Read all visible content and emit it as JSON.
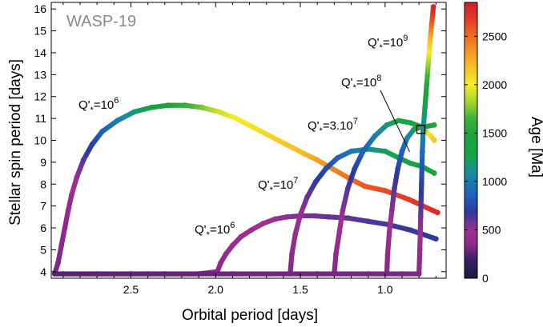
{
  "chart_data": {
    "type": "scatter",
    "title": "WASP-19",
    "xlabel": "Orbital period [days]",
    "ylabel": "Stellar spin period [days]",
    "colorbar_label": "Age [Ma]",
    "xlim": [
      2.97,
      0.64
    ],
    "ylim": [
      3.7,
      16.3
    ],
    "x_reversed": true,
    "clim": [
      0,
      2850
    ],
    "colormap": "spectral (purple → blue → green → yellow → orange → red)",
    "grid": false,
    "x_ticks": [
      2.5,
      2.0,
      1.5,
      1.0
    ],
    "x_tick_labels": [
      "2.5",
      "2.0",
      "1.5",
      "1.0"
    ],
    "y_ticks": [
      4,
      5,
      6,
      7,
      8,
      9,
      10,
      11,
      12,
      13,
      14,
      15,
      16
    ],
    "y_tick_labels": [
      "4",
      "5",
      "6",
      "7",
      "8",
      "9",
      "10",
      "11",
      "12",
      "13",
      "14",
      "15",
      "16"
    ],
    "colorbar_ticks": [
      0,
      500,
      1000,
      1500,
      2000,
      2500
    ],
    "colorbar_tick_labels": [
      "0",
      "500",
      "1000",
      "1500",
      "2000",
      "2500"
    ],
    "observed_point": {
      "x": 0.789,
      "y": 10.5
    },
    "series": [
      {
        "name": "Q'*=10^6",
        "label_main": "Q'",
        "label_sub": "*",
        "label_eq": "=10",
        "label_sup": "6",
        "points": [
          {
            "x": 2.95,
            "y": 3.9,
            "age": 300
          },
          {
            "x": 2.93,
            "y": 4.4,
            "age": 320
          },
          {
            "x": 2.91,
            "y": 5.2,
            "age": 340
          },
          {
            "x": 2.89,
            "y": 6.0,
            "age": 360
          },
          {
            "x": 2.87,
            "y": 6.8,
            "age": 390
          },
          {
            "x": 2.85,
            "y": 7.5,
            "age": 430
          },
          {
            "x": 2.82,
            "y": 8.3,
            "age": 500
          },
          {
            "x": 2.78,
            "y": 9.1,
            "age": 600
          },
          {
            "x": 2.73,
            "y": 9.8,
            "age": 720
          },
          {
            "x": 2.67,
            "y": 10.4,
            "age": 850
          },
          {
            "x": 2.58,
            "y": 10.9,
            "age": 1000
          },
          {
            "x": 2.48,
            "y": 11.3,
            "age": 1150
          },
          {
            "x": 2.38,
            "y": 11.5,
            "age": 1300
          },
          {
            "x": 2.28,
            "y": 11.6,
            "age": 1450
          },
          {
            "x": 2.18,
            "y": 11.6,
            "age": 1600
          },
          {
            "x": 2.08,
            "y": 11.5,
            "age": 1750
          },
          {
            "x": 1.98,
            "y": 11.3,
            "age": 1900
          },
          {
            "x": 1.88,
            "y": 11.0,
            "age": 2000
          },
          {
            "x": 1.78,
            "y": 10.6,
            "age": 2050
          },
          {
            "x": 1.68,
            "y": 10.2,
            "age": 2100
          },
          {
            "x": 1.58,
            "y": 9.8,
            "age": 2150
          },
          {
            "x": 1.48,
            "y": 9.4,
            "age": 2200
          },
          {
            "x": 1.4,
            "y": 9.1,
            "age": 2300
          },
          {
            "x": 1.31,
            "y": 8.7,
            "age": 2400
          },
          {
            "x": 1.22,
            "y": 8.3,
            "age": 2480
          },
          {
            "x": 1.12,
            "y": 7.9,
            "age": 2560
          },
          {
            "x": 1.0,
            "y": 7.7,
            "age": 2620
          },
          {
            "x": 0.86,
            "y": 7.3,
            "age": 2680
          },
          {
            "x": 0.72,
            "y": 6.8,
            "age": 2740
          },
          {
            "x": 0.69,
            "y": 6.7,
            "age": 2780
          }
        ]
      },
      {
        "name": "Q'*=10^6 (lower)",
        "label_main": "Q'",
        "label_sub": "*",
        "label_eq": "=10",
        "label_sup": "6",
        "points": [
          {
            "x": 2.9,
            "y": 3.9,
            "age": 250
          },
          {
            "x": 2.7,
            "y": 3.9,
            "age": 270
          },
          {
            "x": 2.5,
            "y": 3.9,
            "age": 290
          },
          {
            "x": 2.3,
            "y": 3.9,
            "age": 310
          },
          {
            "x": 2.1,
            "y": 3.9,
            "age": 330
          },
          {
            "x": 1.99,
            "y": 4.0,
            "age": 360
          },
          {
            "x": 1.97,
            "y": 4.4,
            "age": 380
          },
          {
            "x": 1.94,
            "y": 4.8,
            "age": 400
          },
          {
            "x": 1.9,
            "y": 5.2,
            "age": 420
          },
          {
            "x": 1.85,
            "y": 5.6,
            "age": 440
          },
          {
            "x": 1.79,
            "y": 5.9,
            "age": 460
          },
          {
            "x": 1.72,
            "y": 6.2,
            "age": 480
          },
          {
            "x": 1.65,
            "y": 6.4,
            "age": 500
          },
          {
            "x": 1.58,
            "y": 6.5,
            "age": 520
          },
          {
            "x": 1.5,
            "y": 6.55,
            "age": 540
          },
          {
            "x": 1.42,
            "y": 6.55,
            "age": 560
          },
          {
            "x": 1.33,
            "y": 6.5,
            "age": 580
          },
          {
            "x": 1.22,
            "y": 6.45,
            "age": 600
          },
          {
            "x": 1.1,
            "y": 6.3,
            "age": 620
          },
          {
            "x": 0.98,
            "y": 6.15,
            "age": 640
          },
          {
            "x": 0.85,
            "y": 5.9,
            "age": 660
          },
          {
            "x": 0.7,
            "y": 5.5,
            "age": 680
          }
        ]
      },
      {
        "name": "Q'*=10^7",
        "label_main": "Q'",
        "label_sub": "*",
        "label_eq": "=10",
        "label_sup": "7",
        "points": [
          {
            "x": 1.56,
            "y": 3.9,
            "age": 300
          },
          {
            "x": 1.55,
            "y": 4.8,
            "age": 360
          },
          {
            "x": 1.53,
            "y": 5.7,
            "age": 420
          },
          {
            "x": 1.5,
            "y": 6.6,
            "age": 490
          },
          {
            "x": 1.46,
            "y": 7.4,
            "age": 570
          },
          {
            "x": 1.41,
            "y": 8.1,
            "age": 660
          },
          {
            "x": 1.35,
            "y": 8.7,
            "age": 760
          },
          {
            "x": 1.28,
            "y": 9.2,
            "age": 870
          },
          {
            "x": 1.2,
            "y": 9.5,
            "age": 980
          },
          {
            "x": 1.1,
            "y": 9.6,
            "age": 1100
          },
          {
            "x": 1.0,
            "y": 9.5,
            "age": 1200
          },
          {
            "x": 0.92,
            "y": 9.2,
            "age": 1280
          },
          {
            "x": 0.85,
            "y": 8.95,
            "age": 1330
          },
          {
            "x": 0.78,
            "y": 8.8,
            "age": 1380
          },
          {
            "x": 0.71,
            "y": 8.5,
            "age": 1420
          }
        ]
      },
      {
        "name": "Q'*=3.10^7",
        "label_main": "Q'",
        "label_sub": "*",
        "label_eq": "=3.10",
        "label_sup": "7",
        "points": [
          {
            "x": 1.3,
            "y": 3.9,
            "age": 320
          },
          {
            "x": 1.29,
            "y": 4.8,
            "age": 380
          },
          {
            "x": 1.27,
            "y": 5.8,
            "age": 440
          },
          {
            "x": 1.25,
            "y": 6.8,
            "age": 520
          },
          {
            "x": 1.22,
            "y": 7.8,
            "age": 610
          },
          {
            "x": 1.18,
            "y": 8.7,
            "age": 720
          },
          {
            "x": 1.13,
            "y": 9.5,
            "age": 860
          },
          {
            "x": 1.06,
            "y": 10.2,
            "age": 1000
          },
          {
            "x": 0.99,
            "y": 10.7,
            "age": 1150
          },
          {
            "x": 0.92,
            "y": 10.9,
            "age": 1280
          },
          {
            "x": 0.85,
            "y": 10.8,
            "age": 1380
          },
          {
            "x": 0.78,
            "y": 10.6,
            "age": 1450
          },
          {
            "x": 0.71,
            "y": 10.7,
            "age": 1500
          }
        ]
      },
      {
        "name": "Q'*=10^8",
        "label_main": "Q'",
        "label_sub": "*",
        "label_eq": "=10",
        "label_sup": "8",
        "points": [
          {
            "x": 0.99,
            "y": 3.9,
            "age": 320
          },
          {
            "x": 0.985,
            "y": 4.8,
            "age": 380
          },
          {
            "x": 0.975,
            "y": 5.8,
            "age": 440
          },
          {
            "x": 0.96,
            "y": 6.8,
            "age": 520
          },
          {
            "x": 0.945,
            "y": 7.8,
            "age": 610
          },
          {
            "x": 0.925,
            "y": 8.7,
            "age": 720
          },
          {
            "x": 0.9,
            "y": 9.5,
            "age": 850
          },
          {
            "x": 0.87,
            "y": 10.1,
            "age": 1000
          },
          {
            "x": 0.83,
            "y": 10.5,
            "age": 1200
          },
          {
            "x": 0.79,
            "y": 10.6,
            "age": 1500
          },
          {
            "x": 0.76,
            "y": 10.4,
            "age": 1800
          },
          {
            "x": 0.73,
            "y": 10.2,
            "age": 2050
          },
          {
            "x": 0.71,
            "y": 10.0,
            "age": 2150
          }
        ]
      },
      {
        "name": "Q'*=10^9",
        "label_main": "Q'",
        "label_sub": "*",
        "label_eq": "=10",
        "label_sup": "9",
        "points": [
          {
            "x": 2.95,
            "y": 3.9,
            "age": 250
          },
          {
            "x": 2.4,
            "y": 3.9,
            "age": 270
          },
          {
            "x": 1.9,
            "y": 3.9,
            "age": 290
          },
          {
            "x": 1.4,
            "y": 3.9,
            "age": 300
          },
          {
            "x": 1.1,
            "y": 3.9,
            "age": 310
          },
          {
            "x": 0.9,
            "y": 3.9,
            "age": 315
          },
          {
            "x": 0.8,
            "y": 3.9,
            "age": 320
          },
          {
            "x": 0.795,
            "y": 5.0,
            "age": 420
          },
          {
            "x": 0.79,
            "y": 6.5,
            "age": 560
          },
          {
            "x": 0.785,
            "y": 8.0,
            "age": 720
          },
          {
            "x": 0.78,
            "y": 9.5,
            "age": 900
          },
          {
            "x": 0.775,
            "y": 10.5,
            "age": 1050
          },
          {
            "x": 0.765,
            "y": 11.5,
            "age": 1250
          },
          {
            "x": 0.755,
            "y": 12.5,
            "age": 1500
          },
          {
            "x": 0.745,
            "y": 13.5,
            "age": 1800
          },
          {
            "x": 0.735,
            "y": 14.5,
            "age": 2150
          },
          {
            "x": 0.725,
            "y": 15.3,
            "age": 2500
          },
          {
            "x": 0.715,
            "y": 16.1,
            "age": 2800
          }
        ]
      }
    ]
  }
}
